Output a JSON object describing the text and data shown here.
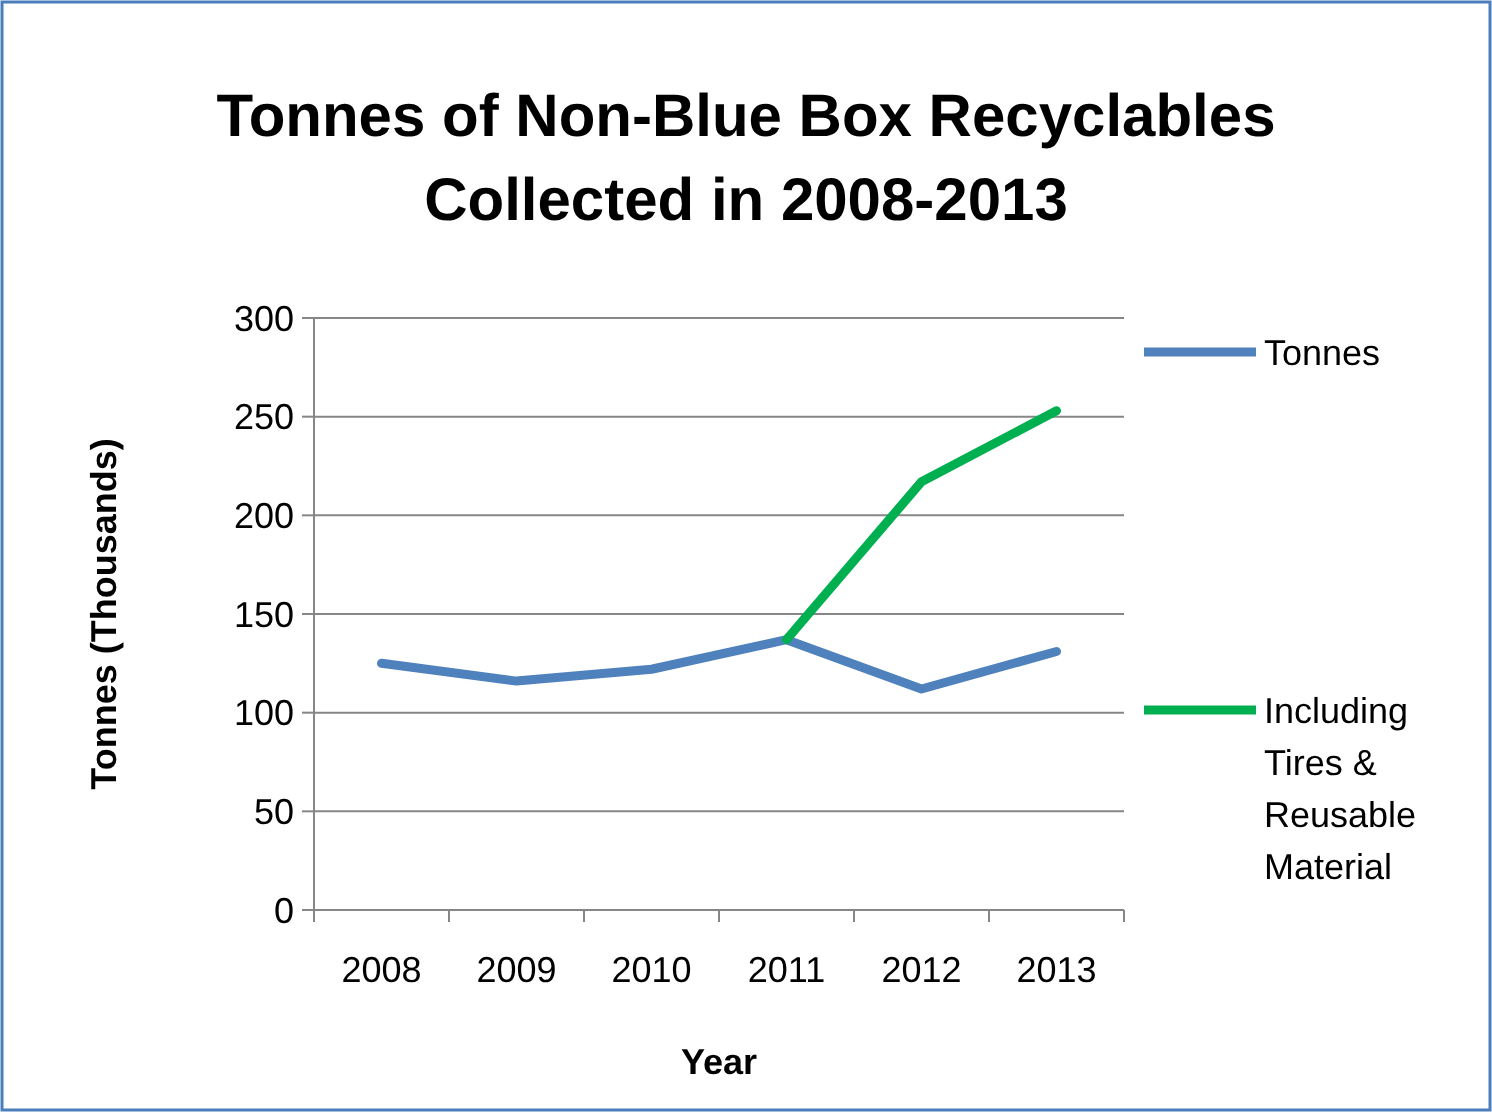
{
  "chart_data": {
    "type": "line",
    "title": "Tonnes of Non-Blue Box Recyclables Collected in 2008-2013",
    "xlabel": "Year",
    "ylabel": "Tonnes (Thousands)",
    "categories": [
      "2008",
      "2009",
      "2010",
      "2011",
      "2012",
      "2013"
    ],
    "series": [
      {
        "name": "Tonnes",
        "color": "#4f81bd",
        "values": [
          125,
          116,
          122,
          137,
          112,
          131
        ]
      },
      {
        "name": "Including Tires & Reusable Material",
        "color": "#00b050",
        "values": [
          null,
          null,
          null,
          137,
          217,
          253
        ]
      }
    ],
    "ylim": [
      0,
      300
    ],
    "yticks": [
      0,
      50,
      100,
      150,
      200,
      250,
      300
    ],
    "grid": "y",
    "legend": "right",
    "marker": "none",
    "line_style": "solid"
  }
}
